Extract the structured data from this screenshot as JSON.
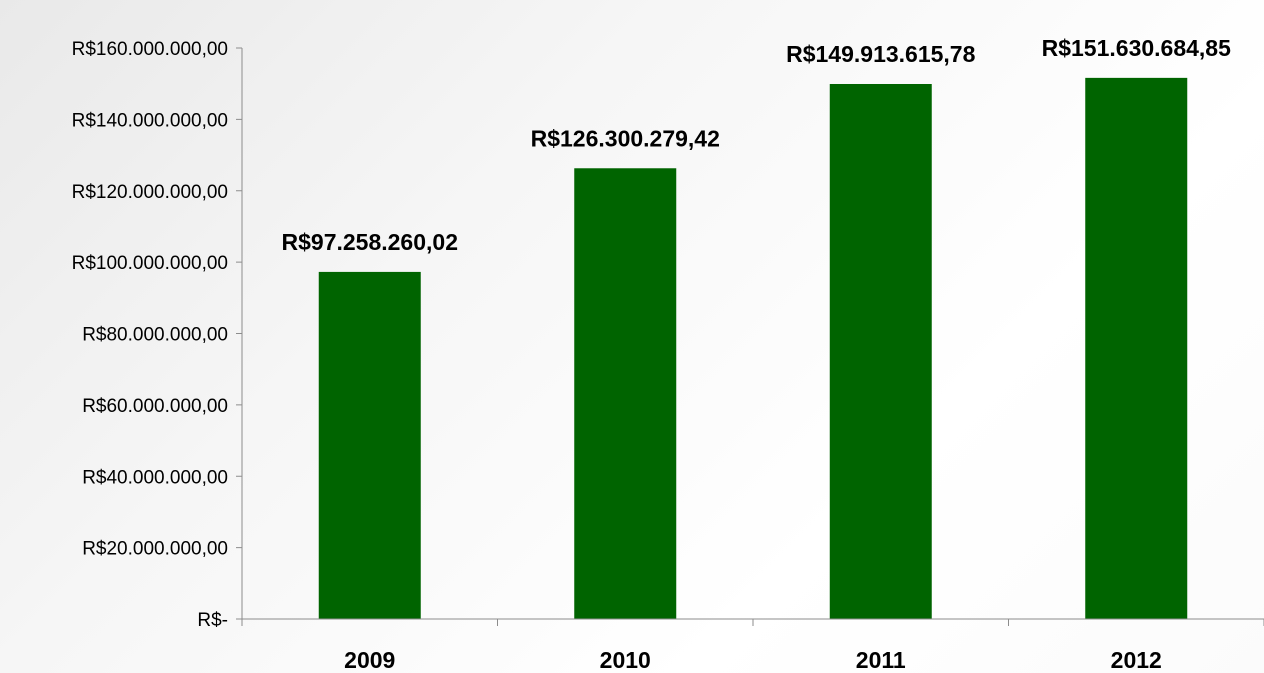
{
  "chart_data": {
    "type": "bar",
    "categories": [
      "2009",
      "2010",
      "2011",
      "2012"
    ],
    "values": [
      97258260.02,
      126300279.42,
      149913615.78,
      151630684.85
    ],
    "data_labels": [
      "R$97.258.260,02",
      "R$126.300.279,42",
      "R$149.913.615,78",
      "R$151.630.684,85"
    ],
    "y_ticks": [
      {
        "value": 0,
        "label": "R$-"
      },
      {
        "value": 20000000,
        "label": "R$20.000.000,00"
      },
      {
        "value": 40000000,
        "label": "R$40.000.000,00"
      },
      {
        "value": 60000000,
        "label": "R$60.000.000,00"
      },
      {
        "value": 80000000,
        "label": "R$80.000.000,00"
      },
      {
        "value": 100000000,
        "label": "R$100.000.000,00"
      },
      {
        "value": 120000000,
        "label": "R$120.000.000,00"
      },
      {
        "value": 140000000,
        "label": "R$140.000.000,00"
      },
      {
        "value": 160000000,
        "label": "R$160.000.000,00"
      }
    ],
    "ylim": [
      0,
      160000000
    ],
    "title": "",
    "xlabel": "",
    "ylabel": "",
    "grid": false,
    "legend": "none",
    "bar_color": "#006400"
  }
}
